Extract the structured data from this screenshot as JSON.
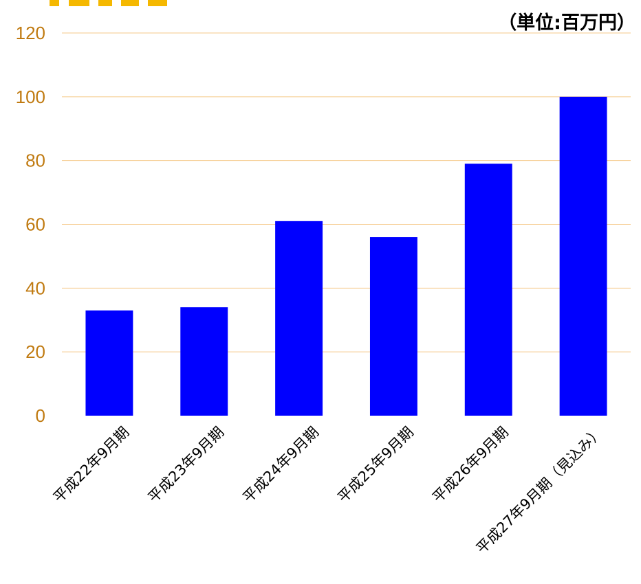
{
  "chart_data": {
    "type": "bar",
    "unit_label": "（単位:百万円）",
    "categories": [
      "平成22年9月期",
      "平成23年9月期",
      "平成24年9月期",
      "平成25年9月期",
      "平成26年9月期",
      "平成27年9月期（見込み）"
    ],
    "values": [
      33,
      34,
      61,
      56,
      79,
      100
    ],
    "ylim": [
      0,
      120
    ],
    "yticks": [
      0,
      20,
      40,
      60,
      80,
      100,
      120
    ],
    "grid": true,
    "legend": "none",
    "colors": {
      "bar": "#0000ff",
      "grid": "#f5c98a",
      "tick_text": "#c07a10",
      "header_accent": "#f5b800"
    }
  }
}
